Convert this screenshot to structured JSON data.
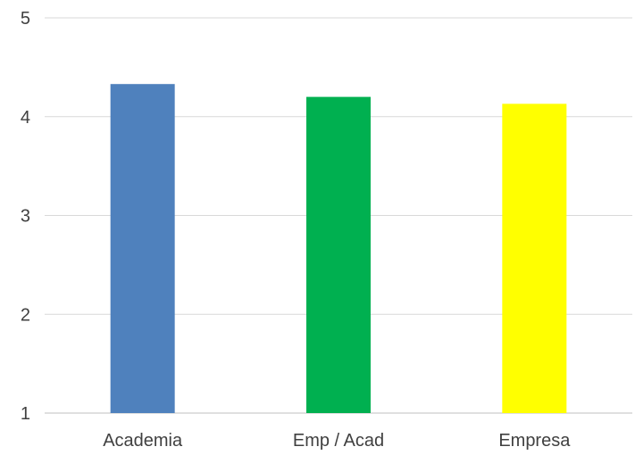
{
  "chart_data": {
    "type": "bar",
    "categories": [
      "Academia",
      "Emp / Acad",
      "Empresa"
    ],
    "values": [
      4.33,
      4.2,
      4.13
    ],
    "colors": [
      "#4f81bd",
      "#00b050",
      "#ffff00"
    ],
    "ylim": [
      1,
      5
    ],
    "yticks": [
      1,
      2,
      3,
      4,
      5
    ],
    "grid": true,
    "title": "",
    "xlabel": "",
    "ylabel": ""
  }
}
